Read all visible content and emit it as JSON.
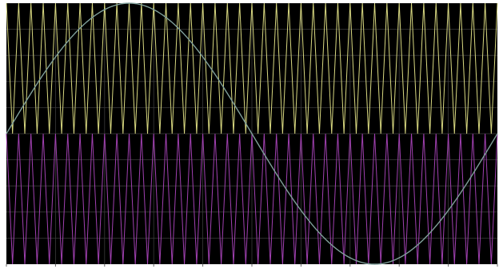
{
  "chart_data": {
    "type": "line",
    "title": "",
    "xlabel": "",
    "ylabel": "",
    "grid": true,
    "legend": "none",
    "xlim": [
      0,
      1
    ],
    "ylim": [
      -1,
      1
    ],
    "background": "#000000",
    "grid_color": "#3a3a3a",
    "series": [
      {
        "shape": "sine",
        "color": "#7f9f9a",
        "amplitude": 1.0,
        "offset": 0.0,
        "cycles": 1,
        "phase_deg": 0
      },
      {
        "shape": "triangle",
        "color": "#d8d880",
        "min": 0.0,
        "max": 1.0,
        "cycles": 40
      },
      {
        "shape": "triangle",
        "color": "#a040b0",
        "min": -1.0,
        "max": 0.0,
        "cycles": 40
      }
    ]
  }
}
